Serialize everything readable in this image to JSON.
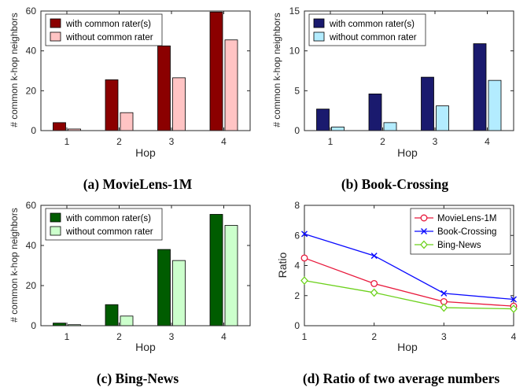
{
  "chart_data": [
    {
      "type": "bar",
      "caption": "(a) MovieLens-1M",
      "xlabel": "Hop",
      "ylabel": "# common k-hop neighbors",
      "categories": [
        "1",
        "2",
        "3",
        "4"
      ],
      "ylim": [
        0,
        60
      ],
      "yticks": [
        "0",
        "20",
        "40",
        "60"
      ],
      "series": [
        {
          "name": "with common rater(s)",
          "color": "#8b0000",
          "values": [
            4,
            25.5,
            42.5,
            59.5
          ]
        },
        {
          "name": "without common rater",
          "color": "#ffc4c4",
          "values": [
            0.8,
            9,
            26.5,
            45.5
          ]
        }
      ]
    },
    {
      "type": "bar",
      "caption": "(b) Book-Crossing",
      "xlabel": "Hop",
      "ylabel": "# common k-hop neighbors",
      "categories": [
        "1",
        "2",
        "3",
        "4"
      ],
      "ylim": [
        0,
        15
      ],
      "yticks": [
        "0",
        "5",
        "10",
        "15"
      ],
      "series": [
        {
          "name": "with common rater(s)",
          "color": "#1a1a6e",
          "values": [
            2.7,
            4.6,
            6.7,
            10.9
          ]
        },
        {
          "name": "without common rater",
          "color": "#b3ecff",
          "values": [
            0.45,
            1.0,
            3.1,
            6.3
          ]
        }
      ]
    },
    {
      "type": "bar",
      "caption": "(c) Bing-News",
      "xlabel": "Hop",
      "ylabel": "# common k-hop neighbors",
      "categories": [
        "1",
        "2",
        "3",
        "4"
      ],
      "ylim": [
        0,
        60
      ],
      "yticks": [
        "0",
        "20",
        "40",
        "60"
      ],
      "series": [
        {
          "name": "with common rater(s)",
          "color": "#005c00",
          "values": [
            1.3,
            10.5,
            38,
            55.5
          ]
        },
        {
          "name": "without common rater",
          "color": "#ccffcc",
          "values": [
            0.5,
            4.8,
            32.5,
            50
          ]
        }
      ]
    },
    {
      "type": "line",
      "caption": "(d) Ratio of two average numbers",
      "xlabel": "Hop",
      "ylabel": "Ratio",
      "x": [
        1,
        2,
        3,
        4
      ],
      "xticks": [
        "1",
        "2",
        "3",
        "4"
      ],
      "ylim": [
        0,
        8
      ],
      "yticks": [
        "0",
        "2",
        "4",
        "6",
        "8"
      ],
      "series": [
        {
          "name": "MovieLens-1M",
          "color": "#e8193c",
          "marker": "o",
          "values": [
            4.5,
            2.8,
            1.6,
            1.3
          ]
        },
        {
          "name": "Book-Crossing",
          "color": "#0a0aff",
          "marker": "x",
          "values": [
            6.1,
            4.65,
            2.15,
            1.75
          ]
        },
        {
          "name": "Bing-News",
          "color": "#6cd11c",
          "marker": "d",
          "values": [
            3.0,
            2.2,
            1.2,
            1.12
          ]
        }
      ]
    }
  ]
}
